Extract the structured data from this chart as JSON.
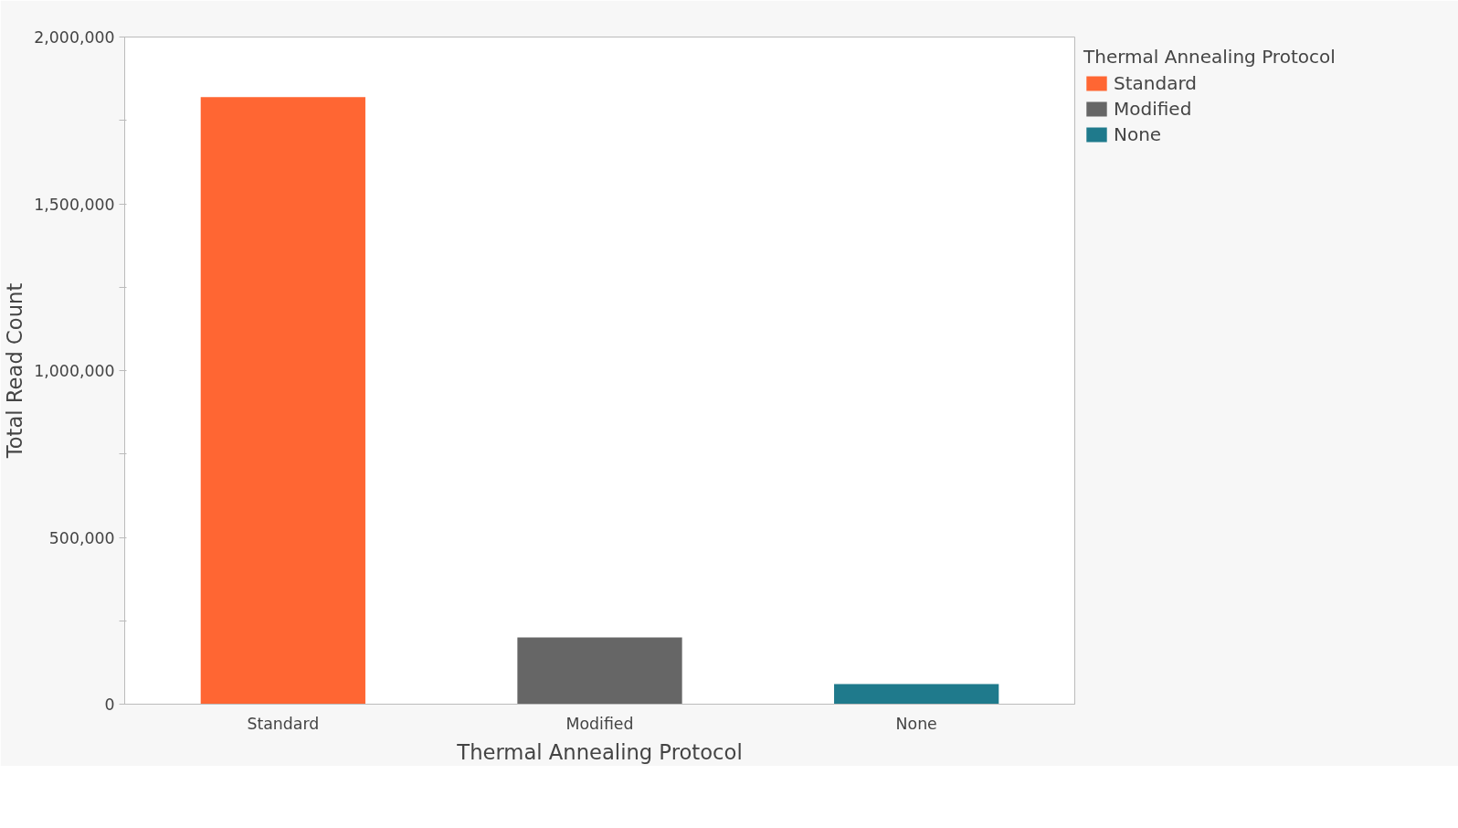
{
  "chart_data": {
    "type": "bar",
    "xlabel": "Thermal Annealing Protocol",
    "ylabel": "Total Read Count",
    "legend_title": "Thermal Annealing Protocol",
    "categories": [
      "Standard",
      "Modified",
      "None"
    ],
    "stacked": true,
    "series": [
      {
        "name": "Standard",
        "color": "#ff6633",
        "values": [
          1820000,
          null,
          null
        ]
      },
      {
        "name": "Modified",
        "color": "#666666",
        "values": [
          null,
          200000,
          null
        ]
      },
      {
        "name": "None",
        "color": "#1f7a8c",
        "values": [
          null,
          null,
          60000
        ]
      }
    ],
    "ylim": [
      0,
      2000000
    ],
    "yticks": [
      0,
      {
        "value": 250000,
        "label": null
      },
      {
        "value": 500000,
        "label": "500,000"
      },
      {
        "value": 750000,
        "label": null
      },
      {
        "value": 1000000,
        "label": "1,000,000"
      },
      {
        "value": 1250000,
        "label": null
      },
      {
        "value": 1500000,
        "label": "1,500,000"
      },
      {
        "value": 1750000,
        "label": null
      },
      {
        "value": 2000000,
        "label": "2,000,000"
      }
    ],
    "grid": false,
    "legend": "right"
  }
}
